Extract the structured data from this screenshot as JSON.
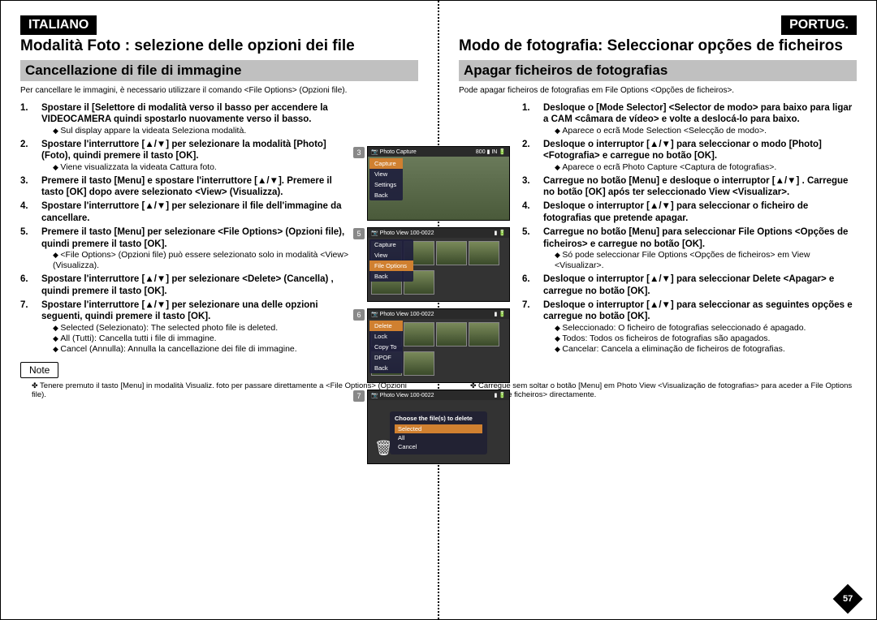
{
  "left": {
    "lang": "ITALIANO",
    "title": "Modalità Foto : selezione delle opzioni dei file",
    "subtitle": "Cancellazione di file di immagine",
    "intro": "Per cancellare le immagini, è necessario utilizzare il comando <File Options> (Opzioni file).",
    "steps": [
      {
        "n": "1.",
        "t": "Spostare il [Selettore di modalità verso il basso per accendere la VIDEOCAMERA quindi spostarlo nuovamente verso il basso.",
        "sub": [
          "Sul display appare la videata Seleziona modalità."
        ]
      },
      {
        "n": "2.",
        "t": "Spostare l'interruttore [▲/▼] per selezionare la modalità [Photo] (Foto), quindi premere il tasto [OK].",
        "sub": [
          "Viene visualizzata la videata Cattura foto."
        ]
      },
      {
        "n": "3.",
        "t": "Premere il tasto [Menu] e spostare l'interruttore [▲/▼]. Premere il tasto [OK] dopo avere selezionato <View> (Visualizza).",
        "sub": []
      },
      {
        "n": "4.",
        "t": "Spostare l'interruttore [▲/▼] per selezionare il file dell'immagine da cancellare.",
        "sub": []
      },
      {
        "n": "5.",
        "t": "Premere il tasto [Menu] per selezionare <File Options> (Opzioni file), quindi premere il tasto [OK].",
        "sub": [
          "<File Options> (Opzioni file) può essere selezionato solo in modalità <View> (Visualizza)."
        ]
      },
      {
        "n": "6.",
        "t": "Spostare l'interruttore [▲/▼] per selezionare <Delete> (Cancella) , quindi premere il tasto [OK].",
        "sub": []
      },
      {
        "n": "7.",
        "t": "Spostare l'interruttore [▲/▼] per selezionare una delle opzioni seguenti, quindi premere il tasto [OK].",
        "sub": [
          "Selected (Selezionato): The selected photo file is deleted.",
          "All (Tutti): Cancella tutti i file di immagine.",
          "Cancel (Annulla): Annulla la cancellazione dei file di immagine."
        ]
      }
    ],
    "noteLabel": "Note",
    "note": "Tenere premuto il tasto [Menu] in modalità Visualiz. foto per passare direttamente a <File Options> (Opzioni file)."
  },
  "right": {
    "lang": "PORTUG.",
    "title": "Modo de fotografia: Seleccionar opções de ficheiros",
    "subtitle": "Apagar ficheiros de fotografias",
    "intro": "Pode apagar ficheiros de fotografias em File Options <Opções de ficheiros>.",
    "steps": [
      {
        "n": "1.",
        "t": "Desloque o [Mode Selector] <Selector de modo> para baixo para ligar a CAM <câmara de vídeo> e volte a deslocá-lo para baixo.",
        "sub": [
          "Aparece o ecrã Mode Selection <Selecção de modo>."
        ]
      },
      {
        "n": "2.",
        "t": "Desloque o interruptor [▲/▼] para seleccionar o modo [Photo] <Fotografia> e carregue no botão [OK].",
        "sub": [
          "Aparece o ecrã Photo Capture <Captura de fotografias>."
        ]
      },
      {
        "n": "3.",
        "t": "Carregue no botão [Menu] e desloque o interruptor [▲/▼] . Carregue no botão [OK] após ter seleccionado View <Visualizar>.",
        "sub": []
      },
      {
        "n": "4.",
        "t": "Desloque o interruptor [▲/▼] para seleccionar o ficheiro de fotografias que pretende apagar.",
        "sub": []
      },
      {
        "n": "5.",
        "t": "Carregue no botão [Menu] para seleccionar File Options <Opções de ficheiros> e carregue no botão [OK].",
        "sub": [
          "Só pode seleccionar File Options <Opções de ficheiros> em View <Visualizar>."
        ]
      },
      {
        "n": "6.",
        "t": "Desloque o interruptor [▲/▼] para seleccionar Delete <Apagar> e carregue no botão [OK].",
        "sub": []
      },
      {
        "n": "7.",
        "t": "Desloque o interruptor [▲/▼] para seleccionar as seguintes opções e carregue no botão [OK].",
        "sub": [
          "Seleccionado: O ficheiro de fotografias seleccionado é apagado.",
          "Todos: Todos os ficheiros de fotografias são apagados.",
          "Cancelar: Cancela a eliminação de ficheiros de fotografias."
        ]
      }
    ],
    "noteLabel": "Nota",
    "note": "Carregue sem soltar o botão [Menu] em Photo View <Visualização de fotografias> para aceder a File Options <Opções de ficheiros> directamente.",
    "pageNum": "57"
  },
  "screens": {
    "s3": {
      "num": "3",
      "header": "Photo Capture",
      "badge": "800",
      "menu": [
        "Capture",
        "View",
        "Settings",
        "Back"
      ],
      "hl": 0
    },
    "s5": {
      "num": "5",
      "header": "Photo View 100-0022",
      "menu": [
        "Capture",
        "View",
        "File Options",
        "Back"
      ],
      "hl": 2
    },
    "s6": {
      "num": "6",
      "header": "Photo View 100-0022",
      "menu": [
        "Delete",
        "Lock",
        "Copy To",
        "DPOF",
        "Back"
      ],
      "hl": 0
    },
    "s7": {
      "num": "7",
      "header": "Photo View 100-0022",
      "dlgTitle": "Choose the file(s) to delete",
      "opts": [
        "Selected",
        "All",
        "Cancel"
      ],
      "hl": 0
    }
  }
}
